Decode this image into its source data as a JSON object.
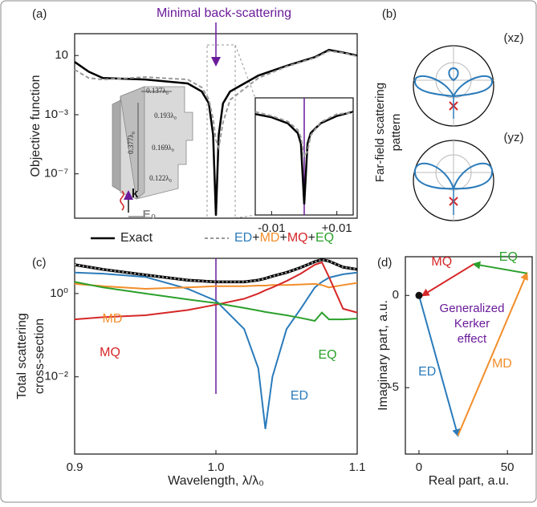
{
  "chart_data": [
    {
      "type": "line",
      "panel_label": "(a)",
      "ylabel": "Objective function",
      "annotation": "Minimal back-scattering",
      "log_y": true,
      "x": [
        0.9,
        0.91,
        0.92,
        0.95,
        0.98,
        0.99,
        0.995,
        0.998,
        1.0,
        1.002,
        1.005,
        1.01,
        1.03,
        1.05,
        1.07,
        1.08,
        1.09,
        1.1
      ],
      "xlim": [
        0.9,
        1.1
      ],
      "ylim": [
        1e-10,
        300
      ],
      "yticks": [
        10,
        {
          "value": 0.001,
          "label": "10⁻³"
        },
        {
          "value": 1e-07,
          "label": "10⁻⁷"
        }
      ],
      "vline": 1.0,
      "series": [
        {
          "name": "Exact",
          "color": "#000000",
          "values": [
            3.7,
            0.8,
            0.3,
            0.24,
            0.13,
            0.037,
            0.0058,
            4.4e-05,
            1.5e-10,
            4.4e-05,
            0.0058,
            0.037,
            0.44,
            2,
            7.8,
            24,
            16,
            10
          ]
        },
        {
          "name": "ED+MD+MQ+EQ",
          "color": "#999999",
          "dashed": true,
          "values": [
            1.1,
            0.3,
            0.24,
            0.35,
            0.24,
            0.07,
            0.011,
            0.0005,
            2e-05,
            6e-06,
            0.0003,
            0.01,
            0.3,
            1.8,
            7,
            20,
            15,
            9
          ]
        }
      ],
      "structure_labels": [
        "0.137λ₀",
        "0.193λ₀",
        "0.377λ₀",
        "0.169λ₀",
        "0.122λ₀",
        "k",
        "E₀"
      ]
    },
    {
      "type": "line",
      "log_y": true,
      "x": [
        -0.015,
        -0.01,
        -0.005,
        -0.002,
        -0.001,
        0,
        0.001,
        0.002,
        0.005,
        0.01,
        0.015
      ],
      "xlim": [
        -0.015,
        0.015
      ],
      "ylim": [
        1e-10,
        10
      ],
      "xticks": [
        -0.01,
        {
          "value": 0.01,
          "label": "+0.01"
        }
      ],
      "vline": 0,
      "series": [
        {
          "color": "#000000",
          "values": [
            0.3,
            0.15,
            0.04,
            0.005,
            0.0005,
            1e-09,
            0.0005,
            0.005,
            0.04,
            0.2,
            0.5
          ]
        },
        {
          "color": "#999999",
          "dashed": true,
          "values": [
            0.5,
            0.2,
            0.06,
            0.01,
            0.002,
            3e-05,
            0.0001,
            0.003,
            0.05,
            0.3,
            0.4
          ]
        }
      ]
    },
    {
      "type": "line",
      "panel_label": "(c)",
      "ylabel": [
        "Total scattering",
        "cross-section"
      ],
      "xlabel": "Wavelength, λ/λ₀",
      "log_y": true,
      "x": [
        0.9,
        0.92,
        0.95,
        0.98,
        1.0,
        1.02,
        1.03,
        1.035,
        1.04,
        1.05,
        1.06,
        1.07,
        1.075,
        1.08,
        1.09,
        1.1
      ],
      "xlim": [
        0.9,
        1.1
      ],
      "ylim": [
        0.00014,
        7
      ],
      "xticks": [
        0.9,
        {
          "value": 1,
          "label": "1.0"
        },
        1.1
      ],
      "yticks": [
        {
          "value": 0.01,
          "label": "10⁻²"
        },
        {
          "value": 1,
          "label": "10⁰"
        }
      ],
      "vline": 1.0,
      "series": [
        {
          "color": "#000000",
          "values": [
            4.9,
            3.8,
            2.8,
            2.1,
            1.9,
            1.9,
            2.1,
            2.3,
            2.6,
            3.2,
            4.2,
            5.8,
            6.5,
            6.0,
            4.3,
            3.8
          ]
        },
        {
          "color": "#aaaaaa",
          "dashed": true,
          "values": [
            4.9,
            3.8,
            2.8,
            2.1,
            1.9,
            1.9,
            2.1,
            2.3,
            2.6,
            3.2,
            4.2,
            5.8,
            6.5,
            6.0,
            4.3,
            3.8
          ]
        },
        {
          "name": "ED",
          "color": "#2b7bba",
          "values": [
            3.2,
            3.0,
            2.5,
            1.3,
            0.67,
            0.14,
            0.016,
            0.00056,
            0.01,
            0.14,
            0.43,
            1.4,
            1.9,
            2.4,
            2.9,
            3.2
          ]
        },
        {
          "name": "MD",
          "color": "#f28e2b",
          "values": [
            1.7,
            1.5,
            1.3,
            1.4,
            1.5,
            1.5,
            1.55,
            1.55,
            1.6,
            1.6,
            1.65,
            1.7,
            1.6,
            1.4,
            1.6,
            1.8
          ]
        },
        {
          "name": "MQ",
          "color": "#d62728",
          "values": [
            0.24,
            0.27,
            0.3,
            0.4,
            0.54,
            0.75,
            1.0,
            1.2,
            1.4,
            2.0,
            3.0,
            4.9,
            5.6,
            2.5,
            0.43,
            0.35
          ]
        },
        {
          "name": "EQ",
          "color": "#2ca02c",
          "values": [
            1.9,
            1.4,
            1.0,
            0.72,
            0.59,
            0.45,
            0.39,
            0.36,
            0.34,
            0.3,
            0.26,
            0.22,
            0.35,
            0.24,
            0.24,
            0.25
          ]
        }
      ]
    },
    {
      "type": "vector",
      "panel_label": "(d)",
      "xlabel": "Real part, a.u.",
      "ylabel": "Imaginary part, a.u.",
      "annotation": [
        "Generalized",
        "Kerker",
        "effect"
      ],
      "xlim": [
        -7.7,
        64
      ],
      "ylim": [
        -8.6,
        2.1
      ],
      "xticks": [
        0,
        50
      ],
      "yticks": [
        0,
        -5
      ],
      "vectors": [
        {
          "name": "ED",
          "color": "#2b7bba",
          "x": [
            0,
            22
          ],
          "y": [
            0,
            -7.6
          ]
        },
        {
          "name": "MD",
          "color": "#f28e2b",
          "x": [
            22,
            61
          ],
          "y": [
            -7.6,
            1.2
          ]
        },
        {
          "name": "EQ",
          "color": "#2ca02c",
          "x": [
            61,
            31
          ],
          "y": [
            1.2,
            1.7
          ]
        },
        {
          "name": "MQ",
          "color": "#d62728",
          "x": [
            31,
            2
          ],
          "y": [
            1.7,
            0
          ]
        }
      ]
    }
  ],
  "far_field": {
    "panel_label": "(b)",
    "title": [
      "Far-field scattering",
      "pattern"
    ],
    "planes": [
      "(xz)",
      "(yz)"
    ]
  }
}
